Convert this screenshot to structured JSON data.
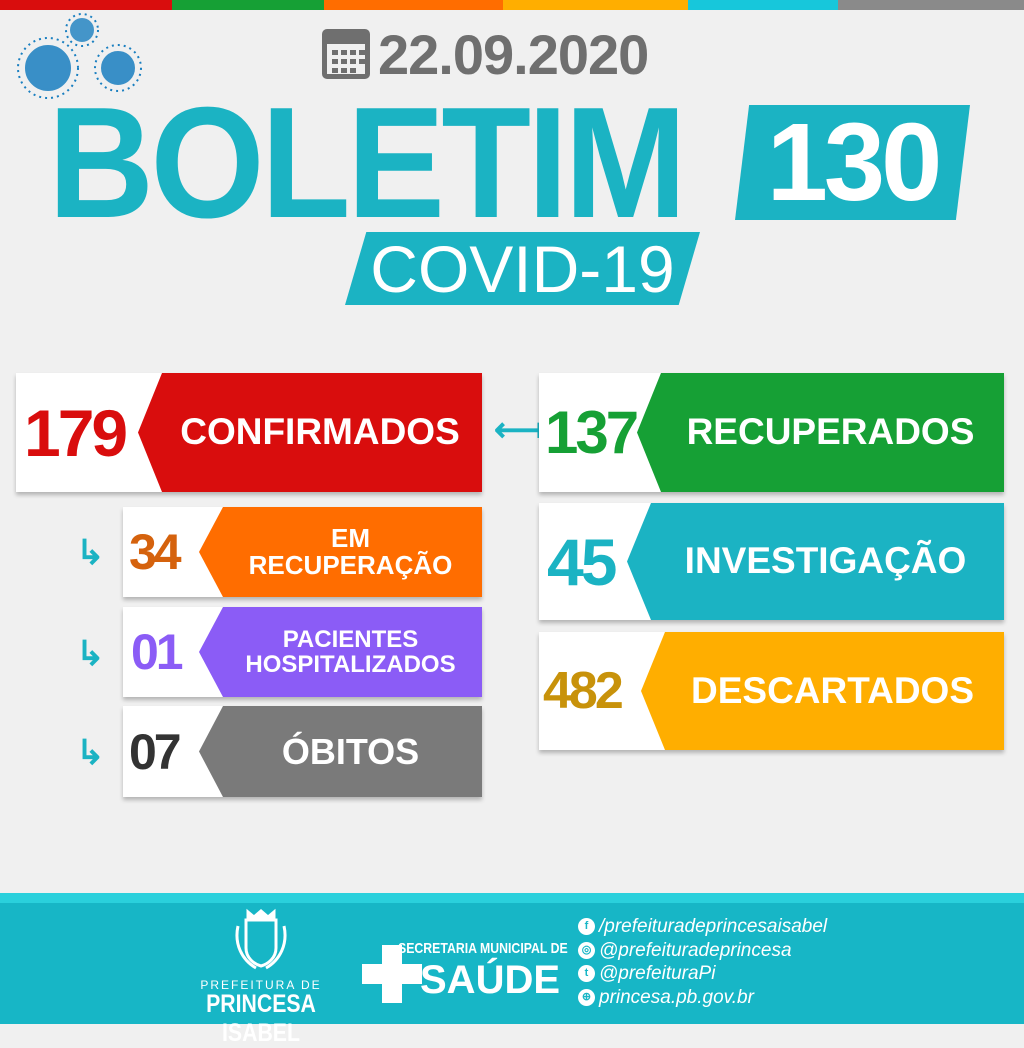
{
  "colors": {
    "red": "#d90d0d",
    "green": "#16a035",
    "orange": "#ff6d00",
    "yellow": "#ffae00",
    "teal": "#1bb3c3",
    "gray": "#7a7a7a",
    "purple": "#8b5cf6"
  },
  "header": {
    "date": "22.09.2020",
    "title": "BOLETIM",
    "number": "130",
    "subtitle": "COVID-19"
  },
  "cards": {
    "confirmados": {
      "value": "179",
      "label": "CONFIRMADOS"
    },
    "recuperados": {
      "value": "137",
      "label": "RECUPERADOS"
    },
    "investigacao": {
      "value": "45",
      "label": "INVESTIGAÇÃO"
    },
    "descartados": {
      "value": "482",
      "label": "DESCARTADOS"
    },
    "em_recuperacao": {
      "value": "34",
      "label_1": "EM",
      "label_2": "RECUPERAÇÃO"
    },
    "hospitalizados": {
      "value": "01",
      "label_1": "PACIENTES",
      "label_2": "HOSPITALIZADOS"
    },
    "obitos": {
      "value": "07",
      "label": "ÓBITOS"
    }
  },
  "footer": {
    "prefeitura_small": "PREFEITURA DE",
    "prefeitura_name": "PRINCESA ISABEL",
    "secretaria": "SECRETARIA MUNICIPAL DE",
    "saude": "SAÚDE",
    "social": [
      {
        "icon": "facebook-icon",
        "text": "/prefeituradeprincesaisabel"
      },
      {
        "icon": "instagram-icon",
        "text": "@prefeituradeprincesa"
      },
      {
        "icon": "twitter-icon",
        "text": "@prefeituraPi"
      },
      {
        "icon": "globe-icon",
        "text": "princesa.pb.gov.br"
      }
    ]
  }
}
